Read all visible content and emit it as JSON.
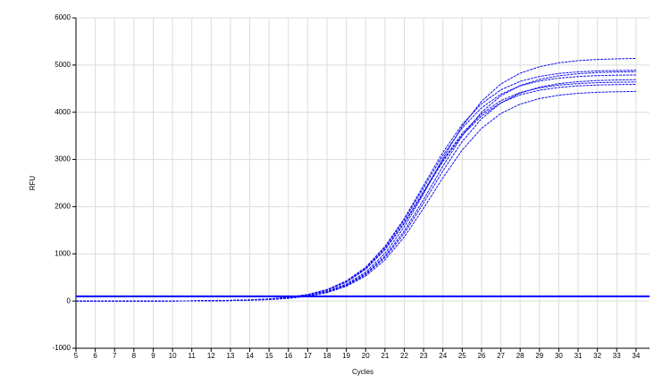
{
  "chart_data": {
    "type": "line",
    "x_label": "Cycles",
    "y_label": "RFU",
    "x": [
      5,
      6,
      7,
      8,
      9,
      10,
      11,
      12,
      13,
      14,
      15,
      16,
      17,
      18,
      19,
      20,
      21,
      22,
      23,
      24,
      25,
      26,
      27,
      28,
      29,
      30,
      31,
      32,
      33,
      34
    ],
    "xlim": [
      5,
      34.7
    ],
    "xticks": [
      5,
      6,
      7,
      8,
      9,
      10,
      11,
      12,
      13,
      14,
      15,
      16,
      17,
      18,
      19,
      20,
      21,
      22,
      23,
      24,
      25,
      26,
      27,
      28,
      29,
      30,
      31,
      32,
      33,
      34
    ],
    "ylim": [
      -1000,
      6000
    ],
    "yticks": [
      -1000,
      0,
      1000,
      2000,
      3000,
      4000,
      5000,
      6000
    ],
    "grid": true,
    "threshold": 100,
    "threshold_color": "#0000ff",
    "series": [
      {
        "color": "#1010ee",
        "values": [
          0,
          0,
          0,
          0,
          1,
          1,
          3,
          5,
          11,
          21,
          37,
          65,
          117,
          206,
          361,
          613,
          1009,
          1571,
          2276,
          3023,
          3703,
          4233,
          4599,
          4828,
          4965,
          5047,
          5093,
          5119,
          5132,
          5140
        ]
      },
      {
        "color": "#1010ee",
        "values": [
          0,
          0,
          0,
          1,
          1,
          2,
          4,
          8,
          14,
          25,
          44,
          78,
          140,
          245,
          426,
          715,
          1156,
          1749,
          2450,
          3151,
          3744,
          4180,
          4474,
          4655,
          4758,
          4822,
          4856,
          4876,
          4885,
          4890
        ]
      },
      {
        "color": "#1010ee",
        "values": [
          0,
          0,
          0,
          1,
          1,
          2,
          4,
          7,
          13,
          24,
          43,
          77,
          137,
          240,
          418,
          701,
          1133,
          1714,
          2400,
          3086,
          3667,
          4094,
          4382,
          4560,
          4661,
          4723,
          4757,
          4776,
          4786,
          4790
        ]
      },
      {
        "color": "#1010ee",
        "values": [
          0,
          0,
          0,
          0,
          1,
          1,
          3,
          5,
          10,
          19,
          33,
          60,
          107,
          188,
          329,
          559,
          921,
          1434,
          2077,
          2759,
          3379,
          3863,
          4197,
          4406,
          4531,
          4606,
          4648,
          4672,
          4684,
          4691
        ]
      },
      {
        "color": "#1010ee",
        "values": [
          0,
          0,
          0,
          1,
          1,
          2,
          4,
          7,
          13,
          23,
          41,
          74,
          131,
          230,
          400,
          672,
          1086,
          1642,
          2300,
          2958,
          3514,
          3924,
          4200,
          4370,
          4467,
          4526,
          4559,
          4577,
          4586,
          4591
        ]
      },
      {
        "color": "#1010ee",
        "values": [
          0,
          0,
          0,
          0,
          1,
          1,
          3,
          5,
          10,
          18,
          32,
          57,
          101,
          178,
          312,
          530,
          872,
          1357,
          1967,
          2612,
          3200,
          3658,
          3974,
          4172,
          4290,
          4361,
          4401,
          4423,
          4434,
          4441
        ]
      },
      {
        "color": "#1010ee",
        "values": [
          0,
          0,
          0,
          0,
          1,
          1,
          3,
          5,
          11,
          19,
          35,
          62,
          111,
          195,
          341,
          580,
          955,
          1485,
          2153,
          2859,
          3502,
          4003,
          4349,
          4566,
          4695,
          4773,
          4816,
          4841,
          4853,
          4860
        ]
      },
      {
        "color": "#1010ee",
        "values": [
          0,
          0,
          0,
          1,
          1,
          2,
          4,
          7,
          13,
          23,
          41,
          74,
          133,
          233,
          405,
          679,
          1097,
          1660,
          2325,
          2990,
          3553,
          3966,
          4245,
          4418,
          4515,
          4576,
          4608,
          4627,
          4636,
          4641
        ]
      }
    ]
  }
}
